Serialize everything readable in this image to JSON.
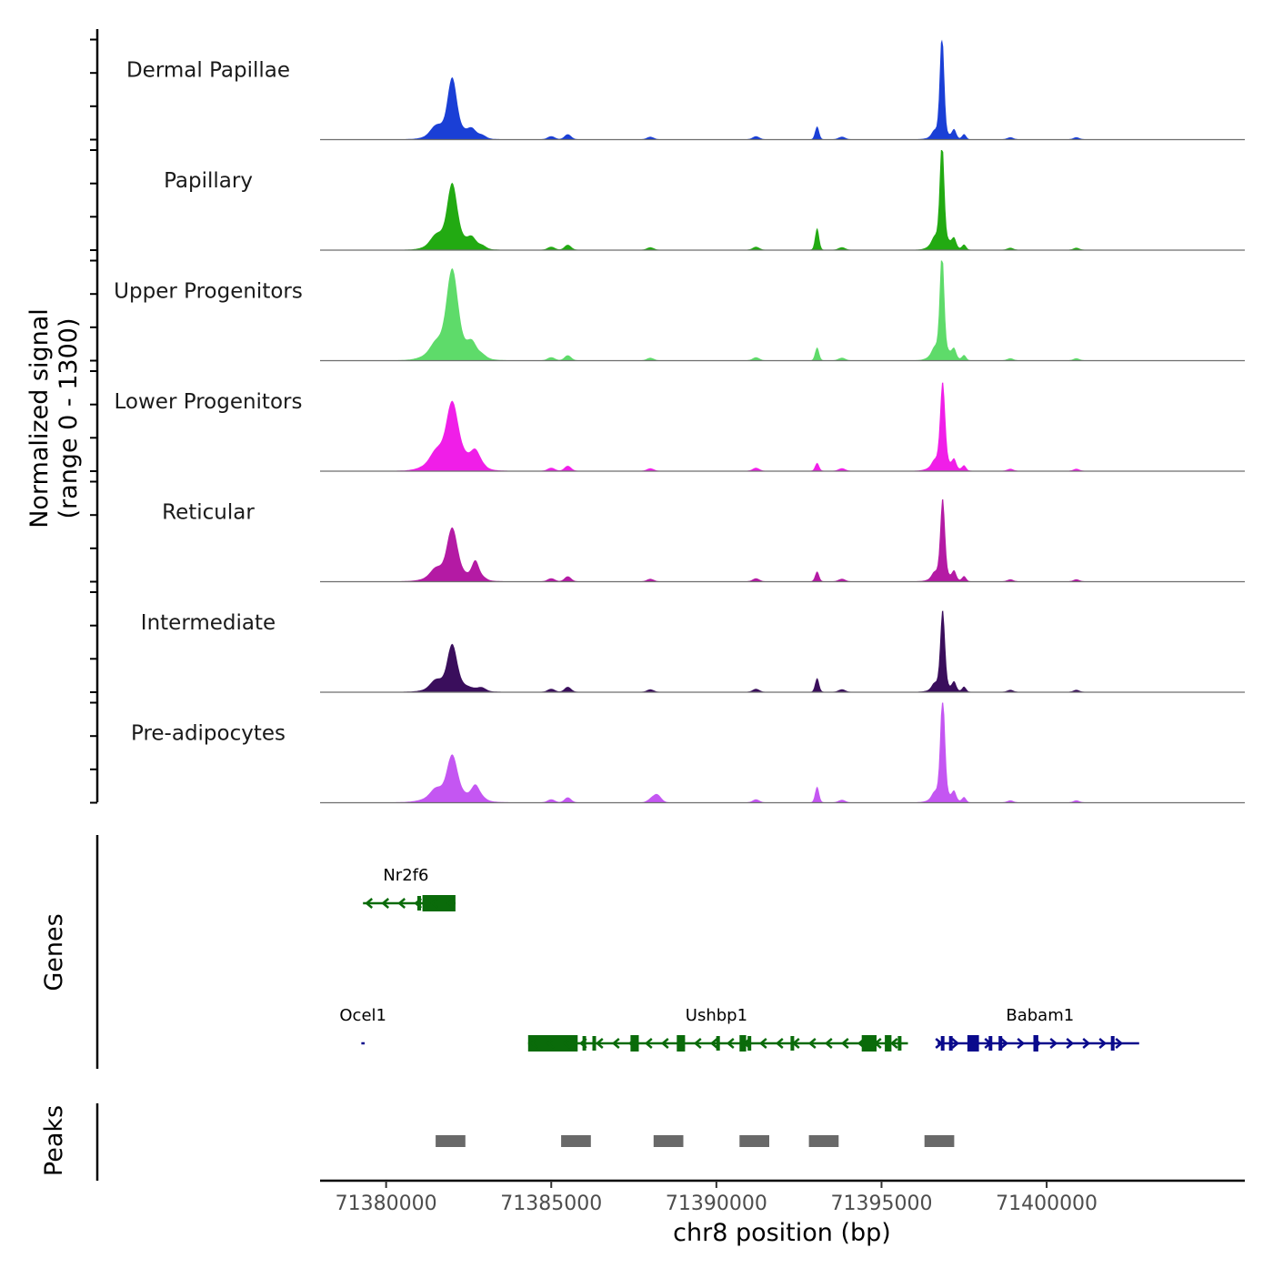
{
  "chart_data": {
    "type": "area",
    "title": "",
    "ylabel_line1": "Normalized signal",
    "ylabel_line2": "(range 0 - 1300)",
    "xlabel": "chr8 position (bp)",
    "xlim": [
      71378000,
      71406000
    ],
    "ylim": [
      0,
      1300
    ],
    "x_ticks": [
      71380000,
      71385000,
      71390000,
      71395000,
      71400000
    ],
    "x_tick_labels": [
      "71380000",
      "71385000",
      "71390000",
      "71395000",
      "71400000"
    ],
    "signal_range": [
      71379200,
      71402800
    ],
    "peaks_common": [
      {
        "pos": 71381500,
        "w": 160,
        "h": 0.07
      },
      {
        "pos": 71382900,
        "w": 120,
        "h": 0.03
      },
      {
        "pos": 71385000,
        "w": 110,
        "h": 0.03
      },
      {
        "pos": 71385500,
        "w": 100,
        "h": 0.05
      },
      {
        "pos": 71388000,
        "w": 100,
        "h": 0.025
      },
      {
        "pos": 71391200,
        "w": 100,
        "h": 0.03
      },
      {
        "pos": 71393800,
        "w": 100,
        "h": 0.025
      },
      {
        "pos": 71396600,
        "w": 80,
        "h": 0.05
      },
      {
        "pos": 71397200,
        "w": 60,
        "h": 0.08
      },
      {
        "pos": 71397500,
        "w": 60,
        "h": 0.05
      },
      {
        "pos": 71398900,
        "w": 90,
        "h": 0.02
      },
      {
        "pos": 71400900,
        "w": 90,
        "h": 0.02
      }
    ],
    "series": [
      {
        "name": "Dermal Papillae",
        "color": "#1a3fd6",
        "peaks": [
          {
            "pos": 71382000,
            "w": 130,
            "h": 0.48
          },
          {
            "pos": 71382000,
            "w": 450,
            "h": 0.14
          },
          {
            "pos": 71382600,
            "w": 110,
            "h": 0.06
          },
          {
            "pos": 71393050,
            "w": 60,
            "h": 0.13
          },
          {
            "pos": 71396830,
            "w": 65,
            "h": 1.0
          },
          {
            "pos": 71396830,
            "w": 250,
            "h": 0.07
          }
        ]
      },
      {
        "name": "Papillary",
        "color": "#22aa12",
        "peaks": [
          {
            "pos": 71382000,
            "w": 140,
            "h": 0.5
          },
          {
            "pos": 71382000,
            "w": 450,
            "h": 0.17
          },
          {
            "pos": 71382600,
            "w": 110,
            "h": 0.07
          },
          {
            "pos": 71393050,
            "w": 60,
            "h": 0.22
          },
          {
            "pos": 71396830,
            "w": 65,
            "h": 0.98
          },
          {
            "pos": 71396830,
            "w": 250,
            "h": 0.14
          }
        ]
      },
      {
        "name": "Upper Progenitors",
        "color": "#5edb6a",
        "peaks": [
          {
            "pos": 71382000,
            "w": 160,
            "h": 0.7
          },
          {
            "pos": 71382000,
            "w": 500,
            "h": 0.22
          },
          {
            "pos": 71382600,
            "w": 120,
            "h": 0.1
          },
          {
            "pos": 71393050,
            "w": 60,
            "h": 0.13
          },
          {
            "pos": 71396830,
            "w": 65,
            "h": 0.97
          },
          {
            "pos": 71396830,
            "w": 250,
            "h": 0.14
          }
        ]
      },
      {
        "name": "Lower Progenitors",
        "color": "#f01ee8",
        "peaks": [
          {
            "pos": 71382000,
            "w": 160,
            "h": 0.45
          },
          {
            "pos": 71382000,
            "w": 500,
            "h": 0.25
          },
          {
            "pos": 71382700,
            "w": 120,
            "h": 0.12
          },
          {
            "pos": 71393050,
            "w": 60,
            "h": 0.08
          },
          {
            "pos": 71396850,
            "w": 75,
            "h": 0.8
          },
          {
            "pos": 71396850,
            "w": 280,
            "h": 0.1
          }
        ]
      },
      {
        "name": "Reticular",
        "color": "#b41aa4",
        "peaks": [
          {
            "pos": 71382000,
            "w": 150,
            "h": 0.42
          },
          {
            "pos": 71382000,
            "w": 500,
            "h": 0.12
          },
          {
            "pos": 71382700,
            "w": 100,
            "h": 0.16
          },
          {
            "pos": 71393050,
            "w": 60,
            "h": 0.1
          },
          {
            "pos": 71396850,
            "w": 70,
            "h": 0.76
          },
          {
            "pos": 71396850,
            "w": 260,
            "h": 0.08
          }
        ]
      },
      {
        "name": "Intermediate",
        "color": "#3a0e5c",
        "peaks": [
          {
            "pos": 71382000,
            "w": 140,
            "h": 0.38
          },
          {
            "pos": 71382000,
            "w": 480,
            "h": 0.1
          },
          {
            "pos": 71393050,
            "w": 60,
            "h": 0.14
          },
          {
            "pos": 71396850,
            "w": 70,
            "h": 0.76
          },
          {
            "pos": 71396850,
            "w": 260,
            "h": 0.07
          }
        ]
      },
      {
        "name": "Pre-adipocytes",
        "color": "#c456f2",
        "peaks": [
          {
            "pos": 71382000,
            "w": 150,
            "h": 0.36
          },
          {
            "pos": 71382000,
            "w": 550,
            "h": 0.12
          },
          {
            "pos": 71382700,
            "w": 110,
            "h": 0.12
          },
          {
            "pos": 71388200,
            "w": 120,
            "h": 0.08
          },
          {
            "pos": 71393050,
            "w": 60,
            "h": 0.16
          },
          {
            "pos": 71396850,
            "w": 70,
            "h": 1.0
          },
          {
            "pos": 71396850,
            "w": 260,
            "h": 0.1
          }
        ]
      }
    ],
    "genes_track": {
      "label": "Genes",
      "genes": [
        {
          "name": "Nr2f6",
          "row": 0,
          "strand": "-",
          "color": "#0a6b0a",
          "start": 71379300,
          "end": 71382100,
          "label_pos": 71380600,
          "exons": [
            {
              "start": 71381100,
              "end": 71382100
            }
          ],
          "marks": [
            71381000
          ]
        },
        {
          "name": "Ocel1",
          "row": 1,
          "strand": "+",
          "color": "#0a0a8c",
          "start": 71379250,
          "end": 71379350,
          "label_pos": 71379300,
          "exons": [],
          "marks": []
        },
        {
          "name": "Ushbp1",
          "row": 1,
          "strand": "-",
          "color": "#0a6b0a",
          "start": 71384300,
          "end": 71395800,
          "label_pos": 71390000,
          "exons": [
            {
              "start": 71384300,
              "end": 71385800
            },
            {
              "start": 71387400,
              "end": 71387650
            },
            {
              "start": 71388800,
              "end": 71389050
            },
            {
              "start": 71390700,
              "end": 71390900
            },
            {
              "start": 71394400,
              "end": 71394850
            },
            {
              "start": 71395100,
              "end": 71395300
            }
          ],
          "marks": [
            71386000,
            71386300,
            71390050,
            71391000,
            71392300,
            71395550
          ]
        },
        {
          "name": "Babam1",
          "row": 1,
          "strand": "+",
          "color": "#0a0a8c",
          "start": 71396700,
          "end": 71402800,
          "label_pos": 71399800,
          "exons": [
            {
              "start": 71397600,
              "end": 71397950
            },
            {
              "start": 71399600,
              "end": 71399750
            }
          ],
          "marks": [
            71396850,
            71397100,
            71398300,
            71398600,
            71402000
          ]
        }
      ]
    },
    "peaks_track": {
      "label": "Peaks",
      "color": "#696969",
      "regions": [
        [
          71381500,
          71382400
        ],
        [
          71385300,
          71386200
        ],
        [
          71388100,
          71389000
        ],
        [
          71390700,
          71391600
        ],
        [
          71392800,
          71393700
        ],
        [
          71396300,
          71397200
        ]
      ]
    }
  }
}
